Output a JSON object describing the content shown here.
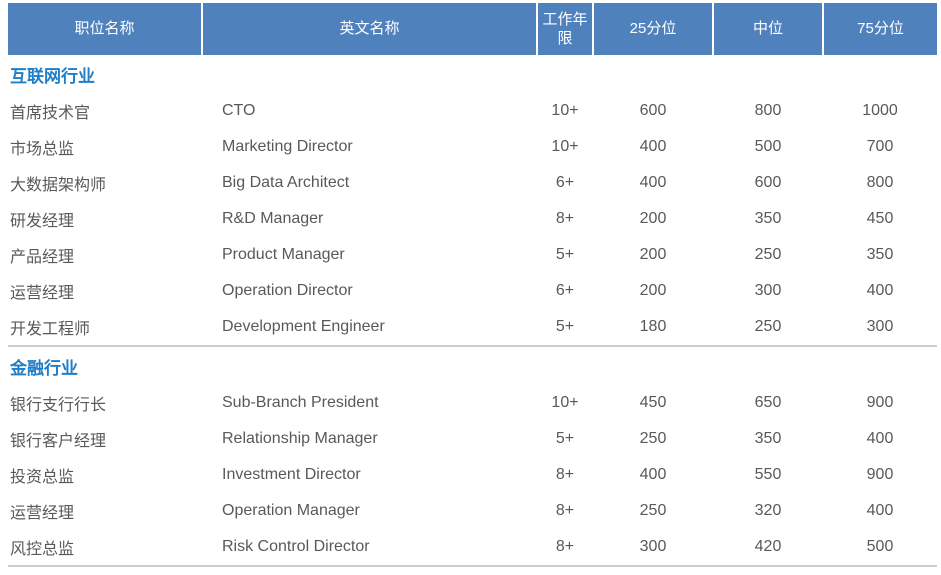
{
  "colors": {
    "header_bg": "#4F81BD",
    "header_text": "#FFFFFF",
    "section_title": "#1E7EC8",
    "body_text": "#595959",
    "divider": "#CDCDCD"
  },
  "table": {
    "columns": [
      {
        "label": "职位名称"
      },
      {
        "label": "英文名称"
      },
      {
        "label": "工作年限"
      },
      {
        "label": "25分位"
      },
      {
        "label": "中位"
      },
      {
        "label": "75分位"
      }
    ],
    "sections": [
      {
        "title": "互联网行业",
        "rows": [
          {
            "position": "首席技术官",
            "english": "CTO",
            "years": "10+",
            "p25": "600",
            "median": "800",
            "p75": "1000"
          },
          {
            "position": "市场总监",
            "english": "Marketing Director",
            "years": "10+",
            "p25": "400",
            "median": "500",
            "p75": "700"
          },
          {
            "position": "大数据架构师",
            "english": "Big Data Architect",
            "years": "6+",
            "p25": "400",
            "median": "600",
            "p75": "800"
          },
          {
            "position": "研发经理",
            "english": "R&D Manager",
            "years": "8+",
            "p25": "200",
            "median": "350",
            "p75": "450"
          },
          {
            "position": "产品经理",
            "english": "Product Manager",
            "years": "5+",
            "p25": "200",
            "median": "250",
            "p75": "350"
          },
          {
            "position": "运营经理",
            "english": "Operation Director",
            "years": "6+",
            "p25": "200",
            "median": "300",
            "p75": "400"
          },
          {
            "position": "开发工程师",
            "english": "Development Engineer",
            "years": "5+",
            "p25": "180",
            "median": "250",
            "p75": "300"
          }
        ]
      },
      {
        "title": "金融行业",
        "rows": [
          {
            "position": "银行支行行长",
            "english": "Sub-Branch President",
            "years": "10+",
            "p25": "450",
            "median": "650",
            "p75": "900"
          },
          {
            "position": "银行客户经理",
            "english": "Relationship Manager",
            "years": "5+",
            "p25": "250",
            "median": "350",
            "p75": "400"
          },
          {
            "position": "投资总监",
            "english": "Investment Director",
            "years": "8+",
            "p25": "400",
            "median": "550",
            "p75": "900"
          },
          {
            "position": "运营经理",
            "english": "Operation Manager",
            "years": "8+",
            "p25": "250",
            "median": "320",
            "p75": "400"
          },
          {
            "position": "风控总监",
            "english": "Risk Control Director",
            "years": "8+",
            "p25": "300",
            "median": "420",
            "p75": "500"
          }
        ]
      }
    ]
  }
}
